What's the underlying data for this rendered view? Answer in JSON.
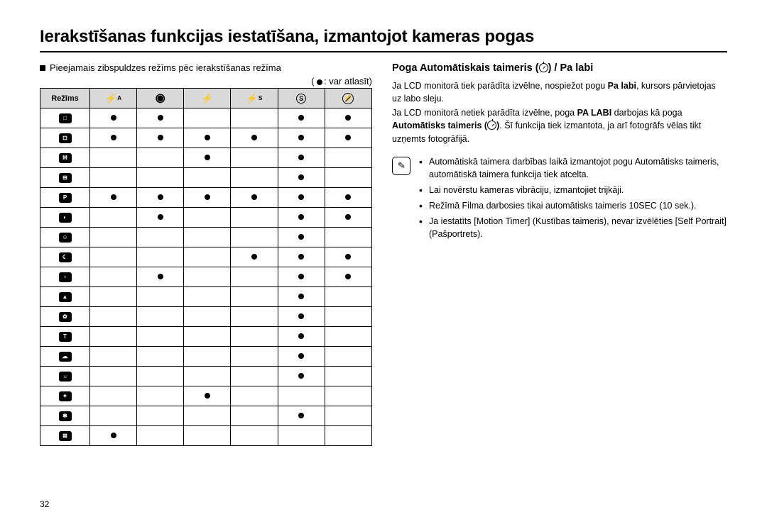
{
  "page_title": "Ierakstīšanas funkcijas iestatīšana, izmantojot kameras pogas",
  "left": {
    "subtitle": "Pieejamais zibspuldzes režīms pēc ierakstīšanas režīma",
    "legend_prefix": "( ",
    "legend_suffix": ": var atlasīt)",
    "table": {
      "header_mode_label": "Režīms",
      "flash_headers": [
        {
          "type": "flash-auto",
          "sup": "A"
        },
        {
          "type": "redeye"
        },
        {
          "type": "flash"
        },
        {
          "type": "flash-slow",
          "sup": "S"
        },
        {
          "type": "slow-sync",
          "text": "S"
        },
        {
          "type": "off"
        }
      ],
      "mode_icons": [
        "□",
        "⊡",
        "M",
        "⊞",
        "P",
        "◐",
        "☺",
        "☾",
        "♀",
        "▲",
        "✿",
        "T",
        "☁",
        "☼",
        "✦",
        "✱",
        "⊠"
      ],
      "matrix": [
        [
          1,
          1,
          0,
          0,
          1,
          1
        ],
        [
          1,
          1,
          1,
          1,
          1,
          1
        ],
        [
          0,
          0,
          1,
          0,
          1,
          0
        ],
        [
          0,
          0,
          0,
          0,
          1,
          0
        ],
        [
          1,
          1,
          1,
          1,
          1,
          1
        ],
        [
          0,
          1,
          0,
          0,
          1,
          1
        ],
        [
          0,
          0,
          0,
          0,
          1,
          0
        ],
        [
          0,
          0,
          0,
          1,
          1,
          1
        ],
        [
          0,
          1,
          0,
          0,
          1,
          1
        ],
        [
          0,
          0,
          0,
          0,
          1,
          0
        ],
        [
          0,
          0,
          0,
          0,
          1,
          0
        ],
        [
          0,
          0,
          0,
          0,
          1,
          0
        ],
        [
          0,
          0,
          0,
          0,
          1,
          0
        ],
        [
          0,
          0,
          0,
          0,
          1,
          0
        ],
        [
          0,
          0,
          1,
          0,
          0,
          0
        ],
        [
          0,
          0,
          0,
          0,
          1,
          0
        ],
        [
          1,
          0,
          0,
          0,
          0,
          0
        ]
      ]
    }
  },
  "right": {
    "section_title_pre": "Poga Automātiskais taimeris (",
    "section_title_post": ") / Pa labi",
    "paragraphs": [
      "Ja LCD monitorā tiek parādīta izvēlne, nospiežot pogu <b>Pa labi</b>, kursors pārvietojas uz labo sleju.",
      "Ja LCD monitorā netiek parādīta izvēlne, poga <b>PA LABI</b> darbojas kā poga <b>Automātisks taimeris (</b><span class=\"timer-inline\"></span><b>)</b>. Šī funkcija tiek izmantota, ja arī fotogrāfs vēlas tikt uzņemts fotogrāfijā."
    ],
    "notes": [
      "Automātiskā taimera darbības laikā izmantojot pogu Automātisks taimeris, automātiskā taimera funkcija tiek atcelta.",
      "Lai novērstu kameras vibrāciju, izmantojiet trijkāji.",
      "Režīmā Filma darbosies tikai automātisks taimeris 10SEC (10 sek.).",
      "Ja iestatīts [Motion Timer] (Kustības taimeris), nevar izvēlēties [Self Portrait] (Pašportrets)."
    ]
  },
  "page_number": "32",
  "colors": {
    "header_bg": "#d9d9d9",
    "text": "#000000",
    "bg": "#ffffff"
  }
}
